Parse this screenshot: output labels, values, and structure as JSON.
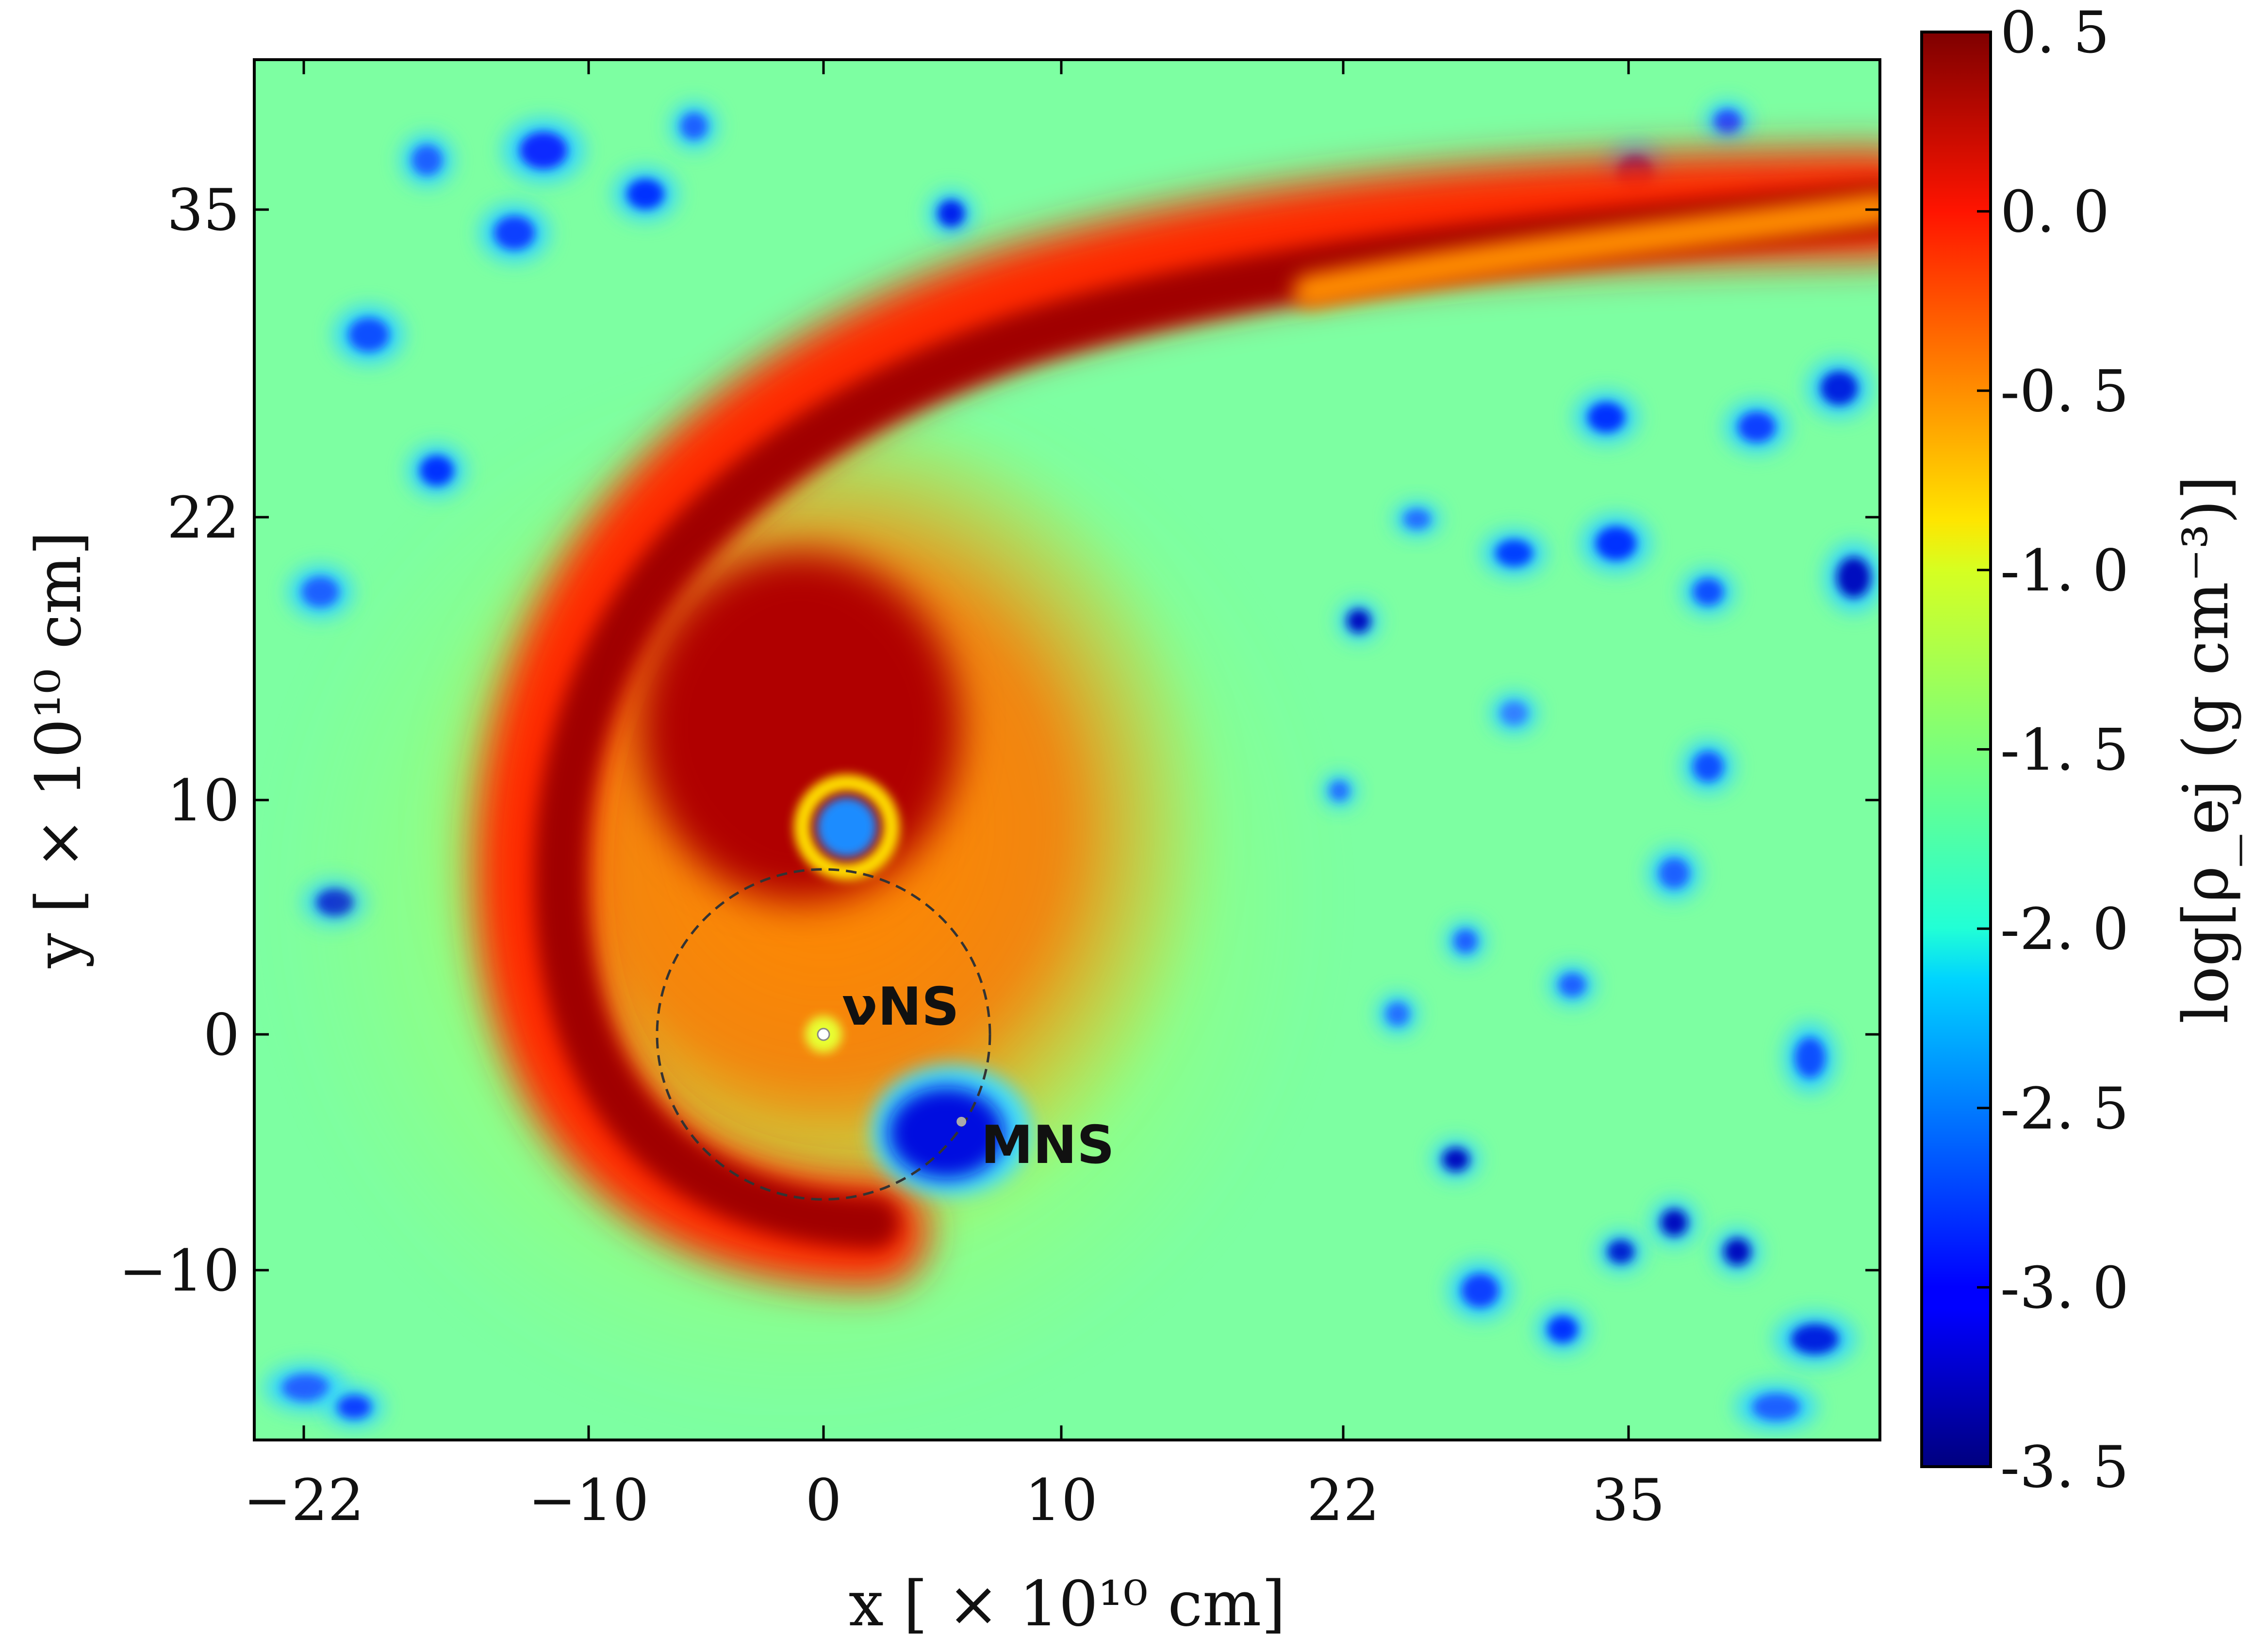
{
  "chart_data": {
    "type": "heatmap",
    "title": "",
    "xlabel": "x [ × 10¹⁰ cm]",
    "ylabel": "y [ × 10¹⁰ cm]",
    "colorbar_label": "log[ρ_ej (g cm⁻³)]",
    "xlim": [
      -24,
      45
    ],
    "ylim": [
      -17.5,
      41
    ],
    "x_ticks": [
      {
        "value": -22,
        "label": "−22"
      },
      {
        "value": -10,
        "label": "−10"
      },
      {
        "value": 0,
        "label": "0"
      },
      {
        "value": 10,
        "label": "10"
      },
      {
        "value": 22,
        "label": "22"
      },
      {
        "value": 35,
        "label": "35"
      }
    ],
    "y_ticks": [
      {
        "value": -10,
        "label": "−10"
      },
      {
        "value": 0,
        "label": "0"
      },
      {
        "value": 10,
        "label": "10"
      },
      {
        "value": 22,
        "label": "22"
      },
      {
        "value": 35,
        "label": "35"
      }
    ],
    "colorbar": {
      "colormap": "jet",
      "range": [
        -3.5,
        0.5
      ],
      "ticks": [
        {
          "value": 0.5,
          "label": "0. 5"
        },
        {
          "value": 0.0,
          "label": "0. 0"
        },
        {
          "value": -0.5,
          "label": "-0. 5"
        },
        {
          "value": -1.0,
          "label": "-1. 0"
        },
        {
          "value": -1.5,
          "label": "-1. 5"
        },
        {
          "value": -2.0,
          "label": "-2. 0"
        },
        {
          "value": -2.5,
          "label": "-2. 5"
        },
        {
          "value": -3.0,
          "label": "-3. 0"
        },
        {
          "value": -3.5,
          "label": "-3. 5"
        }
      ]
    },
    "background_level": -1.7,
    "features": {
      "spiral_arm_level": 0.35,
      "inner_region_level": -0.4,
      "cavity_level": -2.6
    },
    "annotations": [
      {
        "text": "νNS",
        "x": 0,
        "y": 0
      },
      {
        "text": "MNS",
        "x": 5.8,
        "y": -3.7
      }
    ],
    "dashed_circle": {
      "center": [
        0,
        0
      ],
      "radius": 7
    }
  }
}
